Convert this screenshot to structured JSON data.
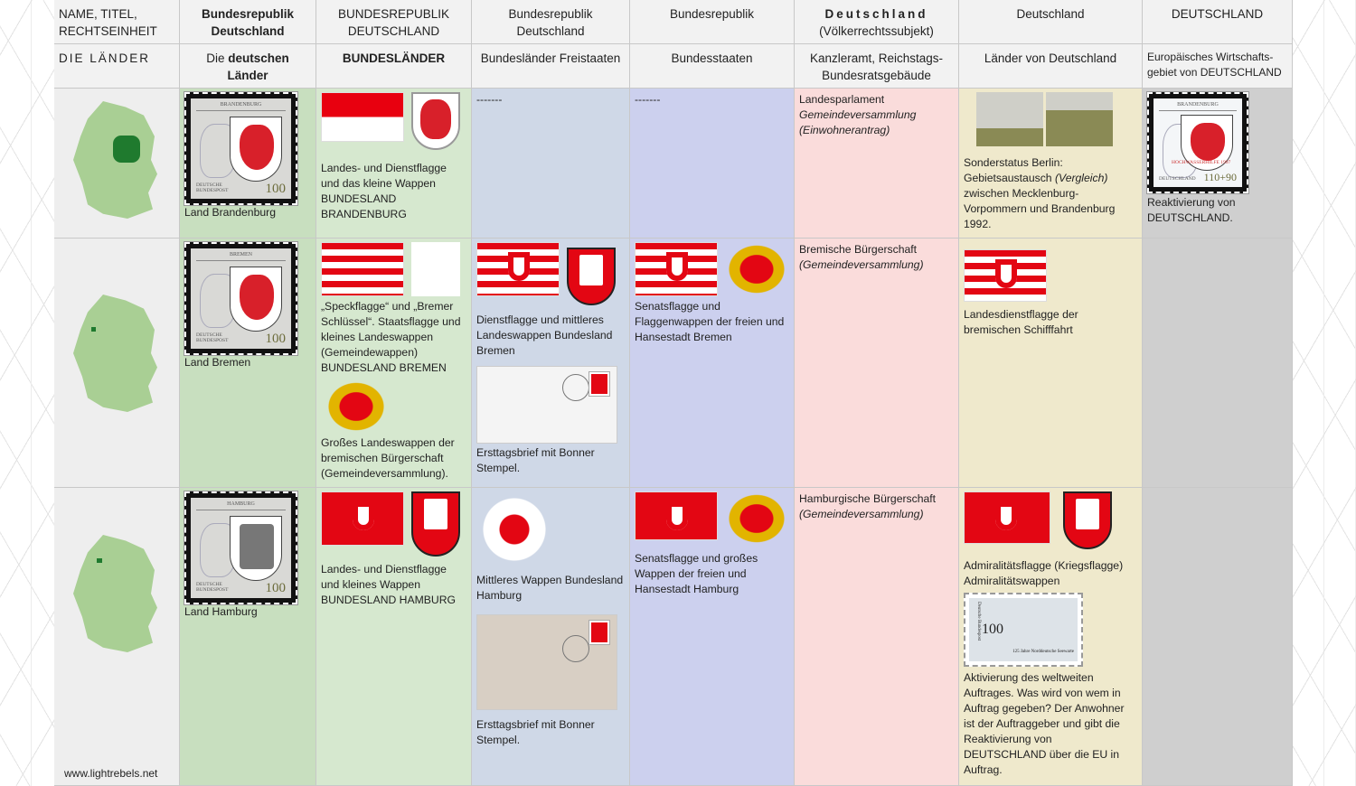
{
  "header": {
    "row1": [
      "NAME, TITEL, RECHTSEINHEIT",
      "Bundesrepublik Deutschland",
      "BUNDESREPUBLIK DEUTSCHLAND",
      "Bundesrepublik Deutschland",
      "Bundesrepublik",
      "Deutschland",
      "(Völkerrechtssubjekt)",
      "Deutschland",
      "DEUTSCHLAND"
    ],
    "row2": [
      "DIE LÄNDER",
      "Die ",
      "deutschen Länder",
      "BUNDESLÄNDER",
      "Bundesländer Freistaaten",
      "Bundesstaaten",
      "Kanzleramt, Reichstags-Bundesratsgebäude",
      "Länder von Deutschland",
      "Europäisches Wirtschafts-gebiet von DEUTSCHLAND"
    ]
  },
  "rows": [
    {
      "stamp": {
        "title": "BRANDENBURG",
        "post": "DEUTSCHE BUNDESPOST",
        "value": "100"
      },
      "land": "Land Brandenburg",
      "c3": "Landes- und Dienstflagge und das kleine Wappen BUNDESLAND BRANDENBURG",
      "c4": "-------",
      "c5": "-------",
      "c6a": "Landesparlament",
      "c6b": "Gemeindeversammlung (Einwohnerantrag)",
      "c7a": "Sonderstatus Berlin: Gebietsaustausch ",
      "c7i": "(Vergleich)",
      "c7b": " zwischen Mecklenburg-Vorpommern und Brandenburg 1992.",
      "c8stamp": {
        "title": "BRANDENBURG",
        "sub": "HOCHWASSERHILFE 1997",
        "post": "DEUTSCHLAND",
        "value": "110+90"
      },
      "c8": "Reaktivierung von DEUTSCHLAND."
    },
    {
      "stamp": {
        "title": "BREMEN",
        "post": "DEUTSCHE BUNDESPOST",
        "value": "100"
      },
      "land": "Land Bremen",
      "c3": "„Speckflagge“ und „Bremer Schlüssel“. Staatsflagge und kleines Landeswappen (Gemeindewappen) BUNDESLAND BREMEN",
      "c3b": "Großes Landeswappen der bremischen Bürgerschaft (Gemeindeversammlung).",
      "c4": "Dienstflagge und mittleres Landeswappen Bundesland Bremen",
      "c4b": "Ersttagsbrief mit Bonner Stempel.",
      "c5": "Senatsflagge und Flaggenwappen der freien und Hansestadt Bremen",
      "c6a": "Bremische Bürgerschaft",
      "c6b": "(Gemeindeversammlung)",
      "c7": "Landesdienstflagge der bremischen Schifffahrt"
    },
    {
      "stamp": {
        "title": "HAMBURG",
        "post": "DEUTSCHE BUNDESPOST",
        "value": "100"
      },
      "land": "Land Hamburg",
      "c3": "Landes- und Dienstflagge und kleines Wappen BUNDESLAND HAMBURG",
      "c4": "Mittleres Wappen Bundesland Hamburg",
      "c4b": "Ersttagsbrief mit Bonner Stempel.",
      "c5": "Senatsflagge und großes Wappen der freien und Hansestadt Hamburg",
      "c6a": "Hamburgische Bürgerschaft",
      "c6b": "(Gemeindeversammlung)",
      "c7": "Admiralitätsflagge (Kriegsflagge) Admiralitätswappen",
      "c7stamp": {
        "value": "100",
        "side": "Deutsche Bundespost",
        "caption": "125 Jahre Norddeutsche Seewarte"
      },
      "c7b": "Aktivierung des weltweiten Auftrages. Was wird von wem in Auftrag gegeben? Der Anwohner ist der Auftraggeber und gibt die Reaktivierung von DEUTSCHLAND über die EU in Auftrag."
    }
  ],
  "footer": "www.lightrebels.net",
  "colors": {
    "col2": "#c8dfbf",
    "col3": "#d6e8cf",
    "col4": "#cfd8e7",
    "col5": "#ccd0ee",
    "col6": "#fadcdb",
    "col7": "#efe9cc",
    "col8": "#cfcfcf"
  }
}
